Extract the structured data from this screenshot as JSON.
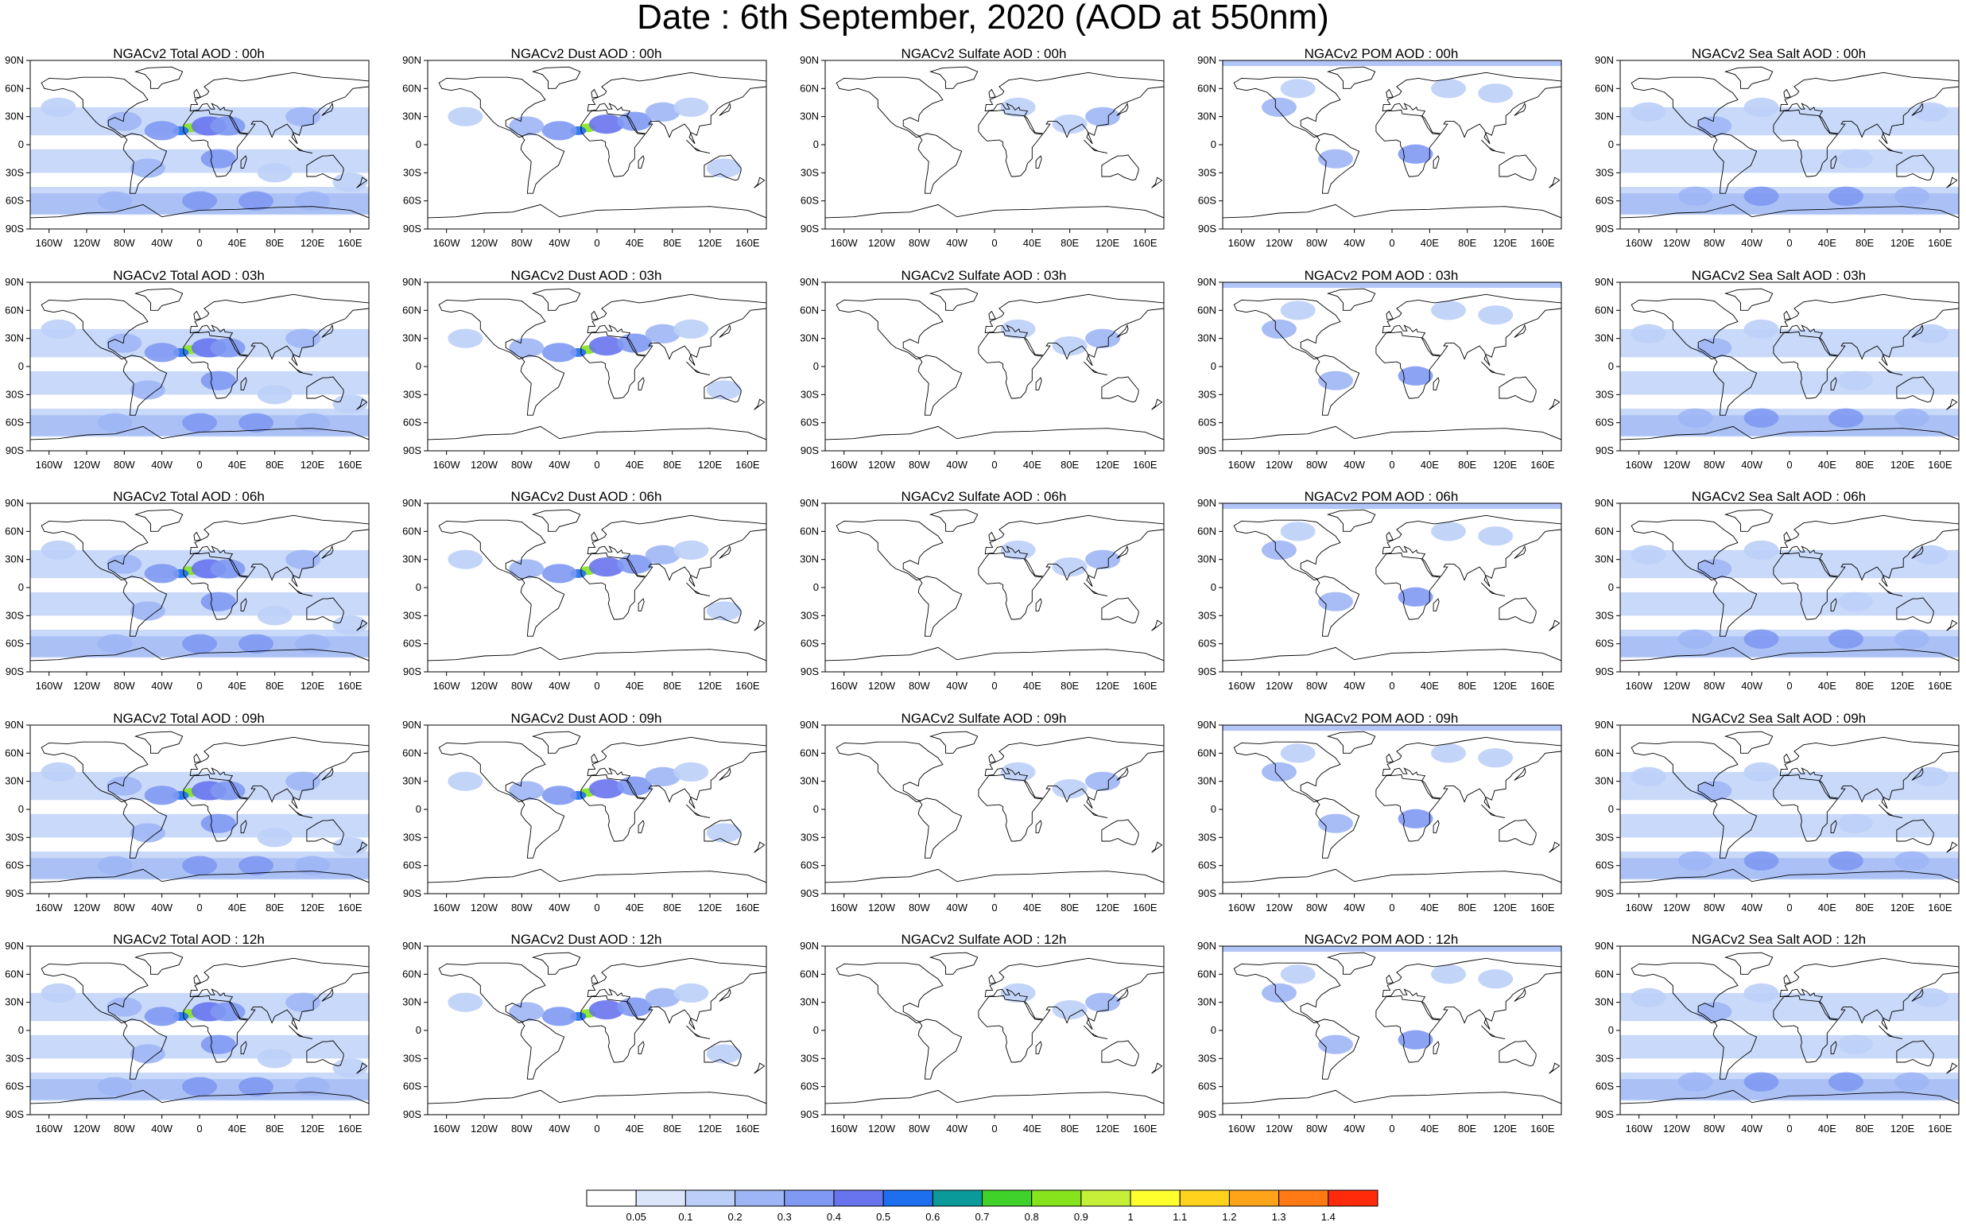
{
  "page": {
    "title": "Date : 6th September, 2020 (AOD at 550nm)"
  },
  "maps": {
    "lon_ticks": [
      "160W",
      "120W",
      "80W",
      "40W",
      "0",
      "40E",
      "80E",
      "120E",
      "160E"
    ],
    "lon_tick_values": [
      -160,
      -120,
      -80,
      -40,
      0,
      40,
      80,
      120,
      160
    ],
    "lat_ticks": [
      "90N",
      "60N",
      "30N",
      "0",
      "30S",
      "60S",
      "90S"
    ],
    "lat_tick_values": [
      90,
      60,
      30,
      0,
      -30,
      -60,
      -90
    ],
    "extent": {
      "lon": [
        -180,
        180
      ],
      "lat": [
        -90,
        90
      ]
    },
    "species": [
      "Total",
      "Dust",
      "Sulfate",
      "POM",
      "Sea Salt"
    ],
    "times": [
      "00h",
      "03h",
      "06h",
      "09h",
      "12h"
    ]
  },
  "panels": [
    [
      "NGACv2 Total AOD : 00h",
      "NGACv2 Dust AOD : 00h",
      "NGACv2 Sulfate AOD : 00h",
      "NGACv2 POM AOD : 00h",
      "NGACv2 Sea Salt AOD : 00h"
    ],
    [
      "NGACv2 Total AOD : 03h",
      "NGACv2 Dust AOD : 03h",
      "NGACv2 Sulfate AOD : 03h",
      "NGACv2 POM AOD : 03h",
      "NGACv2 Sea Salt AOD : 03h"
    ],
    [
      "NGACv2 Total AOD : 06h",
      "NGACv2 Dust AOD : 06h",
      "NGACv2 Sulfate AOD : 06h",
      "NGACv2 POM AOD : 06h",
      "NGACv2 Sea Salt AOD : 06h"
    ],
    [
      "NGACv2 Total AOD : 09h",
      "NGACv2 Dust AOD : 09h",
      "NGACv2 Sulfate AOD : 09h",
      "NGACv2 POM AOD : 09h",
      "NGACv2 Sea Salt  AOD : 09h"
    ],
    [
      "NGACv2 Total AOD  : 12h",
      "NGACv2 Dust AOD : 12h",
      "NGACv2 Sulfate AOD : 12h",
      "NGACv2 POM  AOD : 12h",
      "NGACv2 Sea Salt  AOD : 12h"
    ]
  ],
  "colorbar": {
    "labels": [
      "0.05",
      "0.1",
      "0.2",
      "0.3",
      "0.4",
      "0.5",
      "0.6",
      "0.7",
      "0.8",
      "0.9",
      "1",
      "1.1",
      "1.2",
      "1.3",
      "1.4"
    ],
    "colors": [
      "#ffffff",
      "#dce6fb",
      "#bccff8",
      "#9eb6f5",
      "#8099f2",
      "#6874ee",
      "#1e6ff0",
      "#0b9a9a",
      "#3fd22a",
      "#86e41c",
      "#c5f037",
      "#ffff2e",
      "#ffd21e",
      "#ffa318",
      "#ff7a14",
      "#ff2a0a"
    ]
  },
  "fields": {
    "Total": [
      {
        "lon": -10,
        "lat": 18,
        "level": 0.8
      },
      {
        "lon": -20,
        "lat": 15,
        "level": 0.5
      },
      {
        "lon": 10,
        "lat": 20,
        "level": 0.4
      },
      {
        "lon": -40,
        "lat": 15,
        "level": 0.3
      },
      {
        "lon": 30,
        "lat": 20,
        "level": 0.3
      },
      {
        "lon": -80,
        "lat": 25,
        "level": 0.2
      },
      {
        "lon": 20,
        "lat": -15,
        "level": 0.3
      },
      {
        "lon": -55,
        "lat": -25,
        "level": 0.2
      },
      {
        "lon": 110,
        "lat": 30,
        "level": 0.2
      },
      {
        "lon": 0,
        "lat": -60,
        "level": 0.3
      },
      {
        "lon": 60,
        "lat": -60,
        "level": 0.3
      },
      {
        "lon": 120,
        "lat": -60,
        "level": 0.2
      },
      {
        "lon": -90,
        "lat": -60,
        "level": 0.2
      },
      {
        "lon": -150,
        "lat": 40,
        "level": 0.1
      },
      {
        "lon": 160,
        "lat": -40,
        "level": 0.1
      },
      {
        "lon": 80,
        "lat": -30,
        "level": 0.1
      }
    ],
    "Dust": [
      {
        "lon": -10,
        "lat": 18,
        "level": 0.8
      },
      {
        "lon": -20,
        "lat": 15,
        "level": 0.5
      },
      {
        "lon": 10,
        "lat": 22,
        "level": 0.4
      },
      {
        "lon": -40,
        "lat": 15,
        "level": 0.3
      },
      {
        "lon": 40,
        "lat": 25,
        "level": 0.3
      },
      {
        "lon": -75,
        "lat": 20,
        "level": 0.2
      },
      {
        "lon": 70,
        "lat": 35,
        "level": 0.2
      },
      {
        "lon": 100,
        "lat": 40,
        "level": 0.1
      },
      {
        "lon": -140,
        "lat": 30,
        "level": 0.1
      },
      {
        "lon": 135,
        "lat": -25,
        "level": 0.1
      }
    ],
    "Sulfate": [
      {
        "lon": 115,
        "lat": 30,
        "level": 0.2
      },
      {
        "lon": 80,
        "lat": 22,
        "level": 0.1
      },
      {
        "lon": 25,
        "lat": 40,
        "level": 0.1
      }
    ],
    "POM": [
      {
        "lon": 25,
        "lat": -10,
        "level": 0.3
      },
      {
        "lon": -60,
        "lat": -15,
        "level": 0.2
      },
      {
        "lon": -120,
        "lat": 40,
        "level": 0.2
      },
      {
        "lon": -100,
        "lat": 60,
        "level": 0.1
      },
      {
        "lon": 60,
        "lat": 60,
        "level": 0.1
      },
      {
        "lon": 110,
        "lat": 55,
        "level": 0.1
      }
    ],
    "Sea Salt": [
      {
        "lon": -30,
        "lat": -55,
        "level": 0.3
      },
      {
        "lon": 60,
        "lat": -55,
        "level": 0.3
      },
      {
        "lon": 130,
        "lat": -55,
        "level": 0.2
      },
      {
        "lon": -100,
        "lat": -55,
        "level": 0.2
      },
      {
        "lon": -80,
        "lat": 20,
        "level": 0.2
      },
      {
        "lon": -150,
        "lat": 35,
        "level": 0.1
      },
      {
        "lon": 150,
        "lat": 35,
        "level": 0.1
      },
      {
        "lon": -30,
        "lat": 40,
        "level": 0.1
      },
      {
        "lon": 70,
        "lat": -15,
        "level": 0.1
      }
    ]
  }
}
